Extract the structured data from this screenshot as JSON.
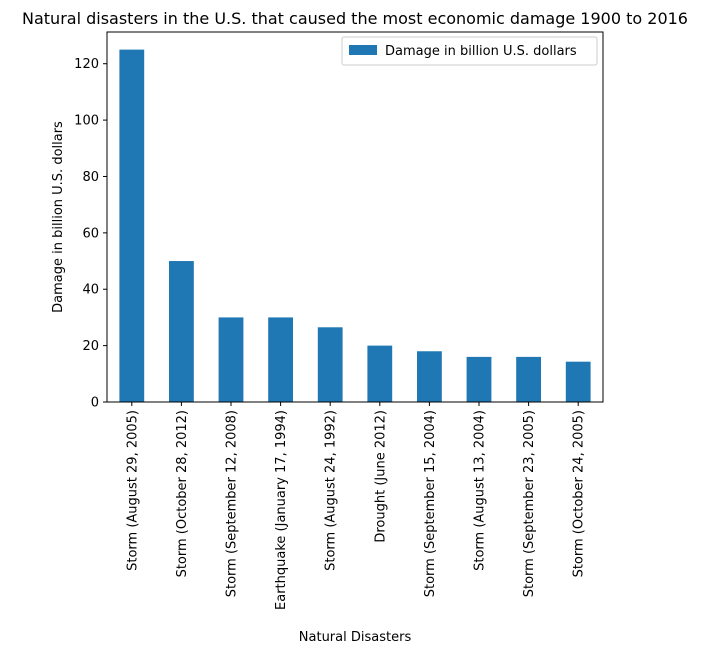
{
  "chart_data": {
    "type": "bar",
    "title": "Natural disasters in the U.S. that caused the most economic damage 1900 to 2016",
    "xlabel": "Natural Disasters",
    "ylabel": "Damage in billion U.S. dollars",
    "categories": [
      "Storm (August 29, 2005)",
      "Storm (October 28, 2012)",
      "Storm (September 12, 2008)",
      "Earthquake (January 17, 1994)",
      "Storm (August 24, 1992)",
      "Drought (June 2012)",
      "Storm (September 15, 2004)",
      "Storm (August 13, 2004)",
      "Storm (September 23, 2005)",
      "Storm (October 24, 2005)"
    ],
    "series": [
      {
        "name": "Damage in billion U.S. dollars",
        "values": [
          125,
          50,
          30,
          30,
          26.5,
          20,
          18,
          16,
          16,
          14.3
        ],
        "color": "#1f77b4"
      }
    ],
    "ylim": [
      0,
      131.25
    ],
    "yticks": [
      0,
      20,
      40,
      60,
      80,
      100,
      120
    ],
    "grid": false,
    "legend_position": "top-right"
  }
}
